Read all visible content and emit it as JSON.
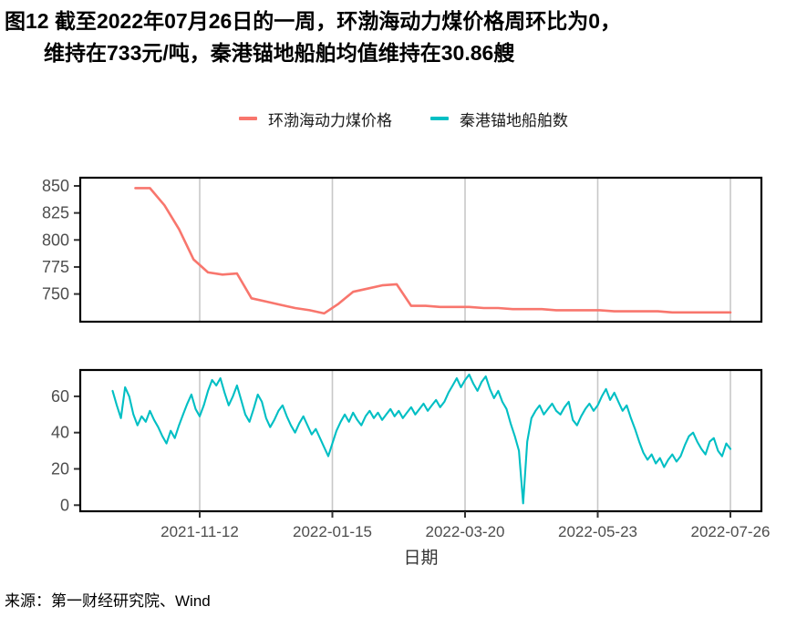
{
  "title": {
    "line1": "图12  截至2022年07月26日的一周，环渤海动力煤价格周环比为0，",
    "line2": "维持在733元/吨，秦港锚地船舶均值维持在30.86艘"
  },
  "source": "来源：第一财经研究院、Wind",
  "chart_data": {
    "type": "line",
    "layout": "two stacked panels sharing x axis, white background, vertical grey major gridlines, black panel borders, legend on top",
    "x_axis": {
      "label": "日期",
      "origin_date": "2021-10-01",
      "ticks": [
        {
          "day": 42,
          "label": "2021-11-12"
        },
        {
          "day": 106,
          "label": "2022-01-15"
        },
        {
          "day": 170,
          "label": "2022-03-20"
        },
        {
          "day": 234,
          "label": "2022-05-23"
        },
        {
          "day": 298,
          "label": "2022-07-26"
        }
      ]
    },
    "panels": [
      {
        "id": "coal-price",
        "y_ticks": [
          850,
          825,
          800,
          775,
          750
        ],
        "ylim": [
          724,
          858
        ]
      },
      {
        "id": "ship-count",
        "y_ticks": [
          60,
          40,
          20,
          0
        ],
        "ylim": [
          -4,
          75
        ]
      }
    ],
    "series": [
      {
        "id": "coal-price",
        "name": "环渤海动力煤价格",
        "color": "#F8766D",
        "panel": 0,
        "unit": "元/吨",
        "start_day": 11,
        "step_days": 7,
        "values": [
          848,
          848,
          832,
          810,
          782,
          770,
          768,
          769,
          746,
          743,
          740,
          737,
          735,
          732,
          741,
          752,
          755,
          758,
          759,
          739,
          739,
          738,
          738,
          738,
          737,
          737,
          736,
          736,
          736,
          735,
          735,
          735,
          735,
          734,
          734,
          734,
          734,
          733,
          733,
          733,
          733,
          733
        ]
      },
      {
        "id": "ship-count",
        "name": "秦港锚地船舶数",
        "color": "#00BFC4",
        "panel": 1,
        "unit": "艘",
        "start_day": 0,
        "step_days": 2,
        "values": [
          63,
          55,
          48,
          65,
          60,
          50,
          44,
          49,
          46,
          52,
          47,
          43,
          38,
          34,
          41,
          37,
          44,
          50,
          56,
          61,
          53,
          49,
          55,
          63,
          69,
          66,
          70,
          62,
          55,
          60,
          66,
          58,
          50,
          46,
          53,
          61,
          57,
          48,
          43,
          47,
          52,
          55,
          49,
          44,
          40,
          45,
          49,
          44,
          39,
          42,
          37,
          32,
          27,
          34,
          41,
          46,
          50,
          46,
          51,
          47,
          44,
          49,
          52,
          48,
          51,
          47,
          50,
          53,
          49,
          52,
          48,
          51,
          54,
          50,
          53,
          56,
          52,
          55,
          58,
          54,
          57,
          62,
          66,
          70,
          65,
          69,
          72,
          67,
          63,
          68,
          71,
          64,
          59,
          63,
          57,
          53,
          45,
          38,
          30,
          1,
          35,
          48,
          52,
          55,
          50,
          53,
          56,
          52,
          50,
          54,
          57,
          47,
          44,
          49,
          53,
          56,
          52,
          55,
          60,
          64,
          58,
          62,
          57,
          52,
          55,
          48,
          42,
          35,
          29,
          25,
          28,
          23,
          26,
          21,
          25,
          28,
          24,
          27,
          33,
          38,
          40,
          35,
          31,
          28,
          35,
          37,
          30,
          27,
          34,
          31
        ]
      }
    ]
  }
}
